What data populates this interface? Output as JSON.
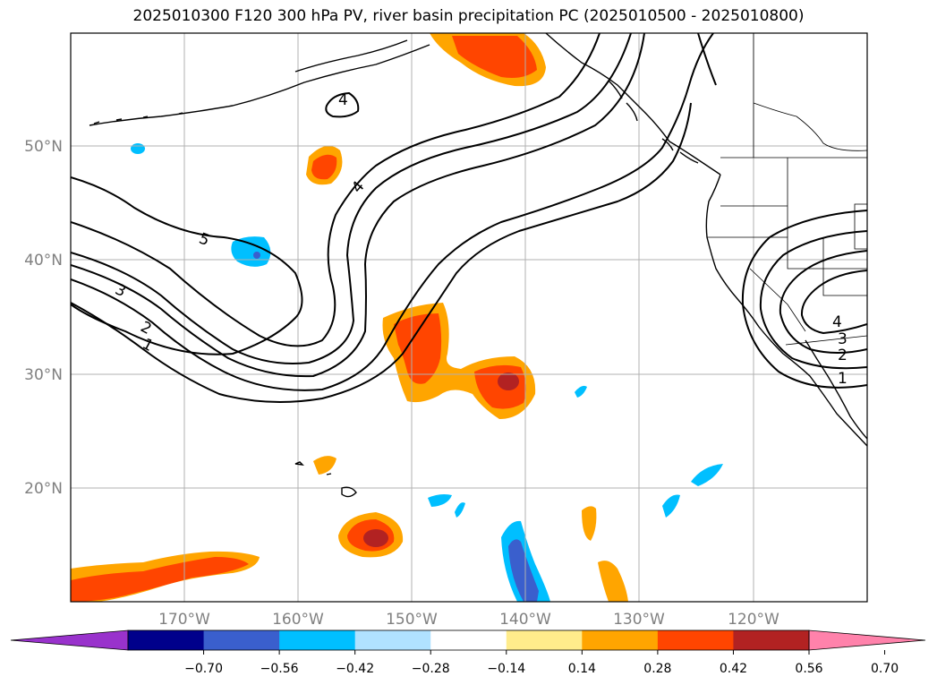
{
  "title": "2025010300 F120 300 hPa PV, river basin precipitation PC (2025010500 - 2025010800)",
  "map": {
    "lat_labels": [
      "50°N",
      "40°N",
      "30°N",
      "20°N"
    ],
    "lon_labels": [
      "170°W",
      "160°W",
      "150°W",
      "140°W",
      "130°W",
      "120°W"
    ],
    "label_color": "#808080",
    "grid_color": "#b0b0b0",
    "pv_contour_labels": [
      "4",
      "4",
      "5",
      "3",
      "2",
      "1",
      "4",
      "3",
      "2",
      "1"
    ]
  },
  "colorbar": {
    "ticks": [
      "-0.70",
      "-0.56",
      "-0.42",
      "-0.28",
      "-0.14",
      "0.14",
      "0.28",
      "0.42",
      "0.56",
      "0.70"
    ],
    "colors": [
      "#9932cc",
      "#00008b",
      "#3a5fcd",
      "#00bfff",
      "#b0e2ff",
      "#ffffff",
      "#ffec8b",
      "#ffa500",
      "#ff4500",
      "#b22222",
      "#ff82ab"
    ],
    "extend": "both"
  }
}
